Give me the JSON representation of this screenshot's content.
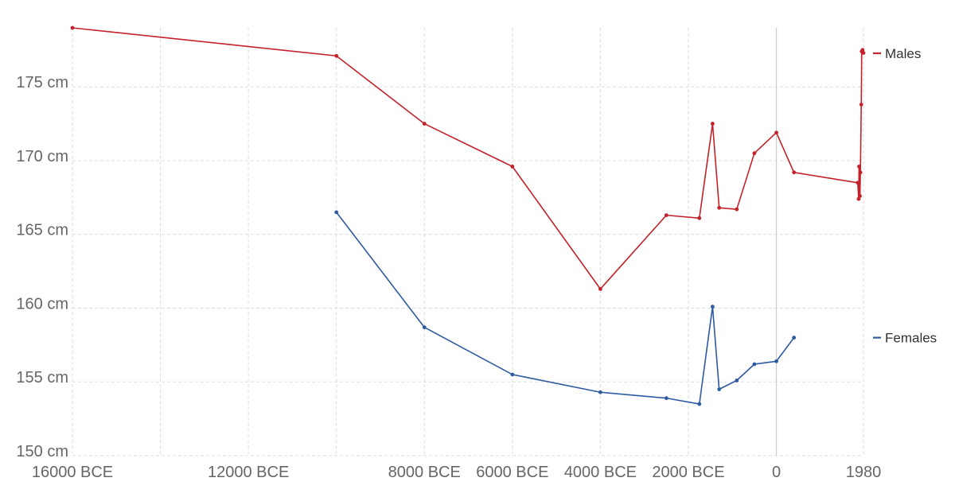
{
  "chart_data": {
    "type": "line",
    "title": "",
    "xlabel": "",
    "ylabel": "",
    "grid": true,
    "legend": "right",
    "x_ticks": [
      {
        "value": -16000,
        "label": "16000 BCE"
      },
      {
        "value": -12000,
        "label": "12000 BCE"
      },
      {
        "value": -8000,
        "label": "8000 BCE"
      },
      {
        "value": -6000,
        "label": "6000 BCE"
      },
      {
        "value": -4000,
        "label": "4000 BCE"
      },
      {
        "value": -2000,
        "label": "2000 BCE"
      },
      {
        "value": 0,
        "label": "0"
      },
      {
        "value": 1980,
        "label": "1980"
      }
    ],
    "y_ticks": [
      {
        "value": 150,
        "label": "150 cm"
      },
      {
        "value": 155,
        "label": "155 cm"
      },
      {
        "value": 160,
        "label": "160 cm"
      },
      {
        "value": 165,
        "label": "165 cm"
      },
      {
        "value": 170,
        "label": "170 cm"
      },
      {
        "value": 175,
        "label": "175 cm"
      }
    ],
    "xlim": [
      -16000,
      1980
    ],
    "ylim": [
      150,
      179
    ],
    "series": [
      {
        "name": "Males",
        "color": "#c4222b",
        "points": [
          [
            -16000,
            179.0
          ],
          [
            -10000,
            177.1
          ],
          [
            -8000,
            172.5
          ],
          [
            -6000,
            169.6
          ],
          [
            -4000,
            161.3
          ],
          [
            -2500,
            166.3
          ],
          [
            -1750,
            166.1
          ],
          [
            -1450,
            172.5
          ],
          [
            -1300,
            166.8
          ],
          [
            -900,
            166.7
          ],
          [
            -500,
            170.5
          ],
          [
            0,
            171.9
          ],
          [
            400,
            169.2
          ],
          [
            1850,
            168.5
          ],
          [
            1870,
            167.4
          ],
          [
            1880,
            169.6
          ],
          [
            1900,
            167.6
          ],
          [
            1910,
            169.2
          ],
          [
            1930,
            173.8
          ],
          [
            1940,
            177.4
          ],
          [
            1960,
            177.5
          ],
          [
            1980,
            177.3
          ]
        ]
      },
      {
        "name": "Females",
        "color": "#2d5aa0",
        "points": [
          [
            -10000,
            166.5
          ],
          [
            -8000,
            158.7
          ],
          [
            -6000,
            155.5
          ],
          [
            -4000,
            154.3
          ],
          [
            -2500,
            153.9
          ],
          [
            -1750,
            153.5
          ],
          [
            -1450,
            160.1
          ],
          [
            -1300,
            154.5
          ],
          [
            -900,
            155.1
          ],
          [
            -500,
            156.2
          ],
          [
            0,
            156.4
          ],
          [
            400,
            158.0
          ]
        ]
      }
    ]
  }
}
